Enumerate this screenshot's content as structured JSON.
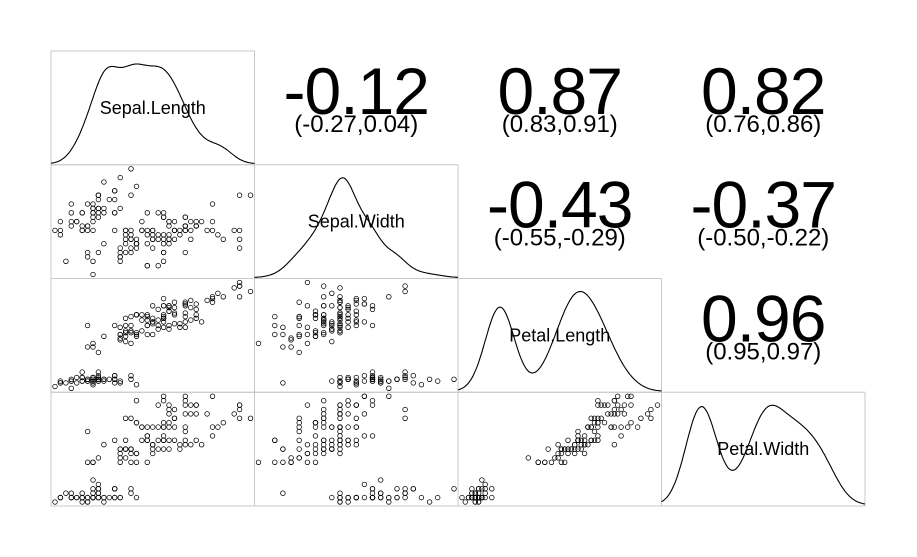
{
  "chart_data": {
    "type": "scatter",
    "subtype": "pairs-matrix",
    "grid": false,
    "variables": [
      "Sepal.Length",
      "Sepal.Width",
      "Petal.Length",
      "Petal.Width"
    ],
    "ranges": {
      "Sepal.Length": [
        4.3,
        7.9
      ],
      "Sepal.Width": [
        2.0,
        4.4
      ],
      "Petal.Length": [
        1.0,
        6.9
      ],
      "Petal.Width": [
        0.1,
        2.5
      ]
    },
    "correlations": [
      {
        "row": 0,
        "col": 1,
        "value": "-0.12",
        "ci": "(-0.27,0.04)"
      },
      {
        "row": 0,
        "col": 2,
        "value": "0.87",
        "ci": "(0.83,0.91)"
      },
      {
        "row": 0,
        "col": 3,
        "value": "0.82",
        "ci": "(0.76,0.86)"
      },
      {
        "row": 1,
        "col": 2,
        "value": "-0.43",
        "ci": "(-0.55,-0.29)"
      },
      {
        "row": 1,
        "col": 3,
        "value": "-0.37",
        "ci": "(-0.50,-0.22)"
      },
      {
        "row": 2,
        "col": 3,
        "value": "0.96",
        "ci": "(0.95,0.97)"
      }
    ],
    "observations": [
      [
        5.1,
        3.5,
        1.4,
        0.2
      ],
      [
        4.9,
        3.0,
        1.4,
        0.2
      ],
      [
        4.7,
        3.2,
        1.3,
        0.2
      ],
      [
        4.6,
        3.1,
        1.5,
        0.2
      ],
      [
        5.0,
        3.6,
        1.4,
        0.2
      ],
      [
        5.4,
        3.9,
        1.7,
        0.4
      ],
      [
        4.6,
        3.4,
        1.4,
        0.3
      ],
      [
        5.0,
        3.4,
        1.5,
        0.2
      ],
      [
        4.4,
        2.9,
        1.4,
        0.2
      ],
      [
        4.9,
        3.1,
        1.5,
        0.1
      ],
      [
        5.4,
        3.7,
        1.5,
        0.2
      ],
      [
        4.8,
        3.4,
        1.6,
        0.2
      ],
      [
        4.8,
        3.0,
        1.4,
        0.1
      ],
      [
        4.3,
        3.0,
        1.1,
        0.1
      ],
      [
        5.8,
        4.0,
        1.2,
        0.2
      ],
      [
        5.7,
        4.4,
        1.5,
        0.4
      ],
      [
        5.4,
        3.9,
        1.3,
        0.4
      ],
      [
        5.1,
        3.5,
        1.4,
        0.3
      ],
      [
        5.7,
        3.8,
        1.7,
        0.3
      ],
      [
        5.1,
        3.8,
        1.5,
        0.3
      ],
      [
        5.4,
        3.4,
        1.7,
        0.2
      ],
      [
        5.1,
        3.7,
        1.5,
        0.4
      ],
      [
        4.6,
        3.6,
        1.0,
        0.2
      ],
      [
        5.1,
        3.3,
        1.7,
        0.5
      ],
      [
        4.8,
        3.4,
        1.9,
        0.2
      ],
      [
        5.0,
        3.0,
        1.6,
        0.2
      ],
      [
        5.0,
        3.4,
        1.6,
        0.4
      ],
      [
        5.2,
        3.5,
        1.5,
        0.2
      ],
      [
        5.2,
        3.4,
        1.4,
        0.2
      ],
      [
        4.7,
        3.2,
        1.6,
        0.2
      ],
      [
        4.8,
        3.1,
        1.6,
        0.2
      ],
      [
        5.4,
        3.4,
        1.5,
        0.4
      ],
      [
        5.2,
        4.1,
        1.5,
        0.1
      ],
      [
        5.5,
        4.2,
        1.4,
        0.2
      ],
      [
        4.9,
        3.1,
        1.5,
        0.2
      ],
      [
        5.0,
        3.2,
        1.2,
        0.2
      ],
      [
        5.5,
        3.5,
        1.3,
        0.2
      ],
      [
        4.9,
        3.6,
        1.4,
        0.1
      ],
      [
        4.4,
        3.0,
        1.3,
        0.2
      ],
      [
        5.1,
        3.4,
        1.5,
        0.2
      ],
      [
        5.0,
        3.5,
        1.3,
        0.3
      ],
      [
        4.5,
        2.3,
        1.3,
        0.3
      ],
      [
        4.4,
        3.2,
        1.3,
        0.2
      ],
      [
        5.0,
        3.5,
        1.6,
        0.6
      ],
      [
        5.1,
        3.8,
        1.9,
        0.4
      ],
      [
        4.8,
        3.0,
        1.4,
        0.3
      ],
      [
        5.1,
        3.8,
        1.6,
        0.2
      ],
      [
        4.6,
        3.2,
        1.4,
        0.2
      ],
      [
        5.3,
        3.7,
        1.5,
        0.2
      ],
      [
        5.0,
        3.3,
        1.4,
        0.2
      ],
      [
        7.0,
        3.2,
        4.7,
        1.4
      ],
      [
        6.4,
        3.2,
        4.5,
        1.5
      ],
      [
        6.9,
        3.1,
        4.9,
        1.5
      ],
      [
        5.5,
        2.3,
        4.0,
        1.3
      ],
      [
        6.5,
        2.8,
        4.6,
        1.5
      ],
      [
        5.7,
        2.8,
        4.5,
        1.3
      ],
      [
        6.3,
        3.3,
        4.7,
        1.6
      ],
      [
        4.9,
        2.4,
        3.3,
        1.0
      ],
      [
        6.6,
        2.9,
        4.6,
        1.3
      ],
      [
        5.2,
        2.7,
        3.9,
        1.4
      ],
      [
        5.0,
        2.0,
        3.5,
        1.0
      ],
      [
        5.9,
        3.0,
        4.2,
        1.5
      ],
      [
        6.0,
        2.2,
        4.0,
        1.0
      ],
      [
        6.1,
        2.9,
        4.7,
        1.4
      ],
      [
        5.6,
        2.9,
        3.6,
        1.3
      ],
      [
        6.7,
        3.1,
        4.4,
        1.4
      ],
      [
        5.6,
        3.0,
        4.5,
        1.5
      ],
      [
        5.8,
        2.7,
        4.1,
        1.0
      ],
      [
        6.2,
        2.2,
        4.5,
        1.5
      ],
      [
        5.6,
        2.5,
        3.9,
        1.1
      ],
      [
        5.9,
        3.2,
        4.8,
        1.8
      ],
      [
        6.1,
        2.8,
        4.0,
        1.3
      ],
      [
        6.3,
        2.5,
        4.9,
        1.5
      ],
      [
        6.1,
        2.8,
        4.7,
        1.2
      ],
      [
        6.4,
        2.9,
        4.3,
        1.3
      ],
      [
        6.6,
        3.0,
        4.4,
        1.4
      ],
      [
        6.8,
        2.8,
        4.8,
        1.4
      ],
      [
        6.7,
        3.0,
        5.0,
        1.7
      ],
      [
        6.0,
        2.9,
        4.5,
        1.5
      ],
      [
        5.7,
        2.6,
        3.5,
        1.0
      ],
      [
        5.5,
        2.4,
        3.8,
        1.1
      ],
      [
        5.5,
        2.4,
        3.7,
        1.0
      ],
      [
        5.8,
        2.7,
        3.9,
        1.2
      ],
      [
        6.0,
        2.7,
        5.1,
        1.6
      ],
      [
        5.4,
        3.0,
        4.5,
        1.5
      ],
      [
        6.0,
        3.4,
        4.5,
        1.6
      ],
      [
        6.7,
        3.1,
        4.7,
        1.5
      ],
      [
        6.3,
        2.3,
        4.4,
        1.3
      ],
      [
        5.6,
        3.0,
        4.1,
        1.3
      ],
      [
        5.5,
        2.5,
        4.0,
        1.3
      ],
      [
        5.5,
        2.6,
        4.4,
        1.2
      ],
      [
        6.1,
        3.0,
        4.6,
        1.4
      ],
      [
        5.8,
        2.6,
        4.0,
        1.2
      ],
      [
        5.0,
        2.3,
        3.3,
        1.0
      ],
      [
        5.6,
        2.7,
        4.2,
        1.3
      ],
      [
        5.7,
        3.0,
        4.2,
        1.2
      ],
      [
        5.7,
        2.9,
        4.2,
        1.3
      ],
      [
        6.2,
        2.9,
        4.3,
        1.3
      ],
      [
        5.1,
        2.5,
        3.0,
        1.1
      ],
      [
        5.7,
        2.8,
        4.1,
        1.3
      ],
      [
        6.3,
        3.3,
        6.0,
        2.5
      ],
      [
        5.8,
        2.7,
        5.1,
        1.9
      ],
      [
        7.1,
        3.0,
        5.9,
        2.1
      ],
      [
        6.3,
        2.9,
        5.6,
        1.8
      ],
      [
        6.5,
        3.0,
        5.8,
        2.2
      ],
      [
        7.6,
        3.0,
        6.6,
        2.1
      ],
      [
        4.9,
        2.5,
        4.5,
        1.7
      ],
      [
        7.3,
        2.9,
        6.3,
        1.8
      ],
      [
        6.7,
        2.5,
        5.8,
        1.8
      ],
      [
        7.2,
        3.6,
        6.1,
        2.5
      ],
      [
        6.5,
        3.2,
        5.1,
        2.0
      ],
      [
        6.4,
        2.7,
        5.3,
        1.9
      ],
      [
        6.8,
        3.0,
        5.5,
        2.1
      ],
      [
        5.7,
        2.5,
        5.0,
        2.0
      ],
      [
        5.8,
        2.8,
        5.1,
        2.4
      ],
      [
        6.4,
        3.2,
        5.3,
        2.3
      ],
      [
        6.5,
        3.0,
        5.5,
        1.8
      ],
      [
        7.7,
        3.8,
        6.7,
        2.2
      ],
      [
        7.7,
        2.6,
        6.9,
        2.3
      ],
      [
        6.0,
        2.2,
        5.0,
        1.5
      ],
      [
        6.9,
        3.2,
        5.7,
        2.3
      ],
      [
        5.6,
        2.8,
        4.9,
        2.0
      ],
      [
        7.7,
        2.8,
        6.7,
        2.0
      ],
      [
        6.3,
        2.7,
        4.9,
        1.8
      ],
      [
        6.7,
        3.3,
        5.7,
        2.1
      ],
      [
        7.2,
        3.2,
        6.0,
        1.8
      ],
      [
        6.2,
        2.8,
        4.8,
        1.8
      ],
      [
        6.1,
        3.0,
        4.9,
        1.8
      ],
      [
        6.4,
        2.8,
        5.6,
        2.1
      ],
      [
        7.2,
        3.0,
        5.8,
        1.6
      ],
      [
        7.4,
        2.8,
        6.1,
        1.9
      ],
      [
        7.9,
        3.8,
        6.4,
        2.0
      ],
      [
        6.4,
        2.8,
        5.6,
        2.2
      ],
      [
        6.3,
        2.8,
        5.1,
        1.5
      ],
      [
        6.1,
        2.6,
        5.6,
        1.4
      ],
      [
        7.7,
        3.0,
        6.1,
        2.3
      ],
      [
        6.3,
        3.4,
        5.6,
        2.4
      ],
      [
        6.4,
        3.1,
        5.5,
        1.8
      ],
      [
        6.0,
        3.0,
        4.8,
        1.8
      ],
      [
        6.9,
        3.1,
        5.4,
        2.1
      ],
      [
        6.7,
        3.1,
        5.6,
        2.4
      ],
      [
        6.9,
        3.1,
        5.1,
        2.3
      ],
      [
        5.8,
        2.7,
        5.1,
        1.9
      ],
      [
        6.8,
        3.2,
        5.9,
        2.3
      ],
      [
        6.7,
        3.3,
        5.7,
        2.5
      ],
      [
        6.7,
        3.0,
        5.2,
        2.3
      ],
      [
        6.3,
        2.5,
        5.0,
        1.9
      ],
      [
        6.5,
        3.0,
        5.2,
        2.0
      ],
      [
        6.2,
        3.4,
        5.4,
        2.3
      ],
      [
        5.9,
        3.0,
        5.1,
        1.8
      ]
    ]
  }
}
